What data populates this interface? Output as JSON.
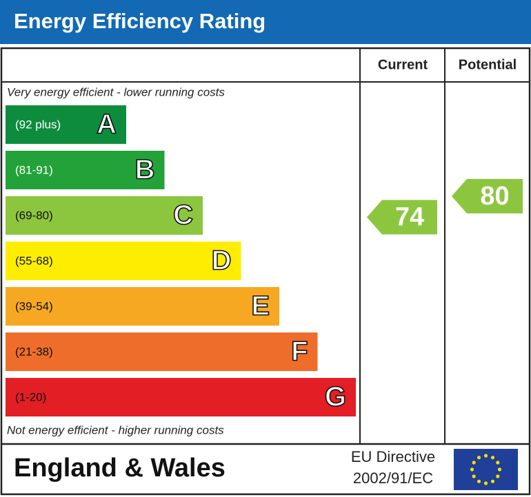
{
  "title": "Energy Efficiency Rating",
  "columns": [
    "Current",
    "Potential"
  ],
  "top_note": "Very energy efficient - lower running costs",
  "bottom_note": "Not energy efficient - higher running costs",
  "bands": [
    {
      "range": "(92 plus)",
      "letter": "A",
      "color": "#0e8c3e"
    },
    {
      "range": "(81-91)",
      "letter": "B",
      "color": "#23a23a"
    },
    {
      "range": "(69-80)",
      "letter": "C",
      "color": "#8cc63f"
    },
    {
      "range": "(55-68)",
      "letter": "D",
      "color": "#ffed00"
    },
    {
      "range": "(39-54)",
      "letter": "E",
      "color": "#f7a823"
    },
    {
      "range": "(21-38)",
      "letter": "F",
      "color": "#ef6d2b"
    },
    {
      "range": "(1-20)",
      "letter": "G",
      "color": "#e31e24"
    }
  ],
  "current": 74,
  "potential": 80,
  "footer": {
    "region": "England & Wales",
    "directive_line1": "EU Directive",
    "directive_line2": "2002/91/EC"
  }
}
